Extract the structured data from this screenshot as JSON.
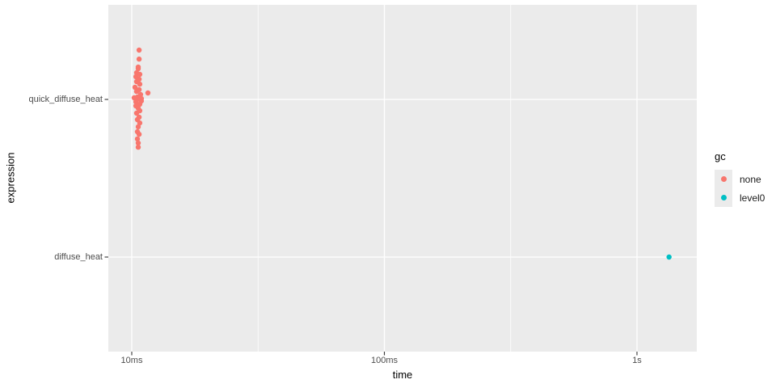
{
  "figure": {
    "background": "#FFFFFF",
    "panel_background": "#EBEBEB",
    "gridline_color": "#FFFFFF",
    "tick_mark_color": "#333333",
    "tick_label_color": "#4D4D4D",
    "title_color": "#000000"
  },
  "axes": {
    "x_title": "time",
    "y_title": "expression",
    "x_tick_labels": [
      "10ms",
      "100ms",
      "1s"
    ],
    "y_tick_labels": [
      "quick_diffuse_heat",
      "diffuse_heat"
    ]
  },
  "legend": {
    "title": "gc",
    "key_fill": "#EBEBEB",
    "entries": [
      {
        "label": "none",
        "color": "#F8766D"
      },
      {
        "label": "level0",
        "color": "#00BFC4"
      }
    ]
  },
  "chart_data": {
    "type": "scatter",
    "title": "",
    "xlabel": "time",
    "ylabel": "expression",
    "x_scale": "log10",
    "x_unit": "ms",
    "x_log10_range": [
      0.9072,
      3.2368
    ],
    "x_ticks": [
      {
        "value_ms": 10,
        "label": "10ms"
      },
      {
        "value_ms": 100,
        "label": "100ms"
      },
      {
        "value_ms": 1000,
        "label": "1s"
      }
    ],
    "x_minor_ticks_ms": [
      31.62,
      316.23
    ],
    "y_categories_top_to_bottom": [
      "quick_diffuse_heat",
      "diffuse_heat"
    ],
    "grid": "on",
    "legend_position": "right",
    "point_radius_px": 3.2,
    "series": [
      {
        "name": "none",
        "color": "#F8766D",
        "category": "quick_diffuse_heat",
        "points_t_ms_jitter": [
          [
            10.69,
            -0.313
          ],
          [
            10.69,
            -0.256
          ],
          [
            10.61,
            -0.205
          ],
          [
            10.61,
            -0.195
          ],
          [
            10.45,
            -0.169
          ],
          [
            10.76,
            -0.159
          ],
          [
            10.38,
            -0.144
          ],
          [
            10.69,
            -0.128
          ],
          [
            10.45,
            -0.113
          ],
          [
            10.76,
            -0.097
          ],
          [
            10.3,
            -0.077
          ],
          [
            10.69,
            -0.062
          ],
          [
            10.45,
            -0.051
          ],
          [
            11.59,
            -0.041
          ],
          [
            10.84,
            -0.031
          ],
          [
            10.53,
            -0.015
          ],
          [
            10.22,
            -0.01
          ],
          [
            10.92,
            -0.005
          ],
          [
            10.53,
            0.0
          ],
          [
            10.92,
            0.01
          ],
          [
            10.38,
            0.015
          ],
          [
            10.76,
            0.031
          ],
          [
            10.38,
            0.041
          ],
          [
            10.61,
            0.056
          ],
          [
            10.76,
            0.072
          ],
          [
            10.45,
            0.087
          ],
          [
            10.69,
            0.113
          ],
          [
            10.53,
            0.128
          ],
          [
            10.76,
            0.149
          ],
          [
            10.61,
            0.174
          ],
          [
            10.53,
            0.205
          ],
          [
            10.69,
            0.221
          ],
          [
            10.53,
            0.251
          ],
          [
            10.61,
            0.277
          ],
          [
            10.61,
            0.303
          ]
        ]
      },
      {
        "name": "level0",
        "color": "#00BFC4",
        "category": "diffuse_heat",
        "points_t_ms_jitter": [
          [
            1340,
            0.0
          ]
        ]
      }
    ]
  }
}
